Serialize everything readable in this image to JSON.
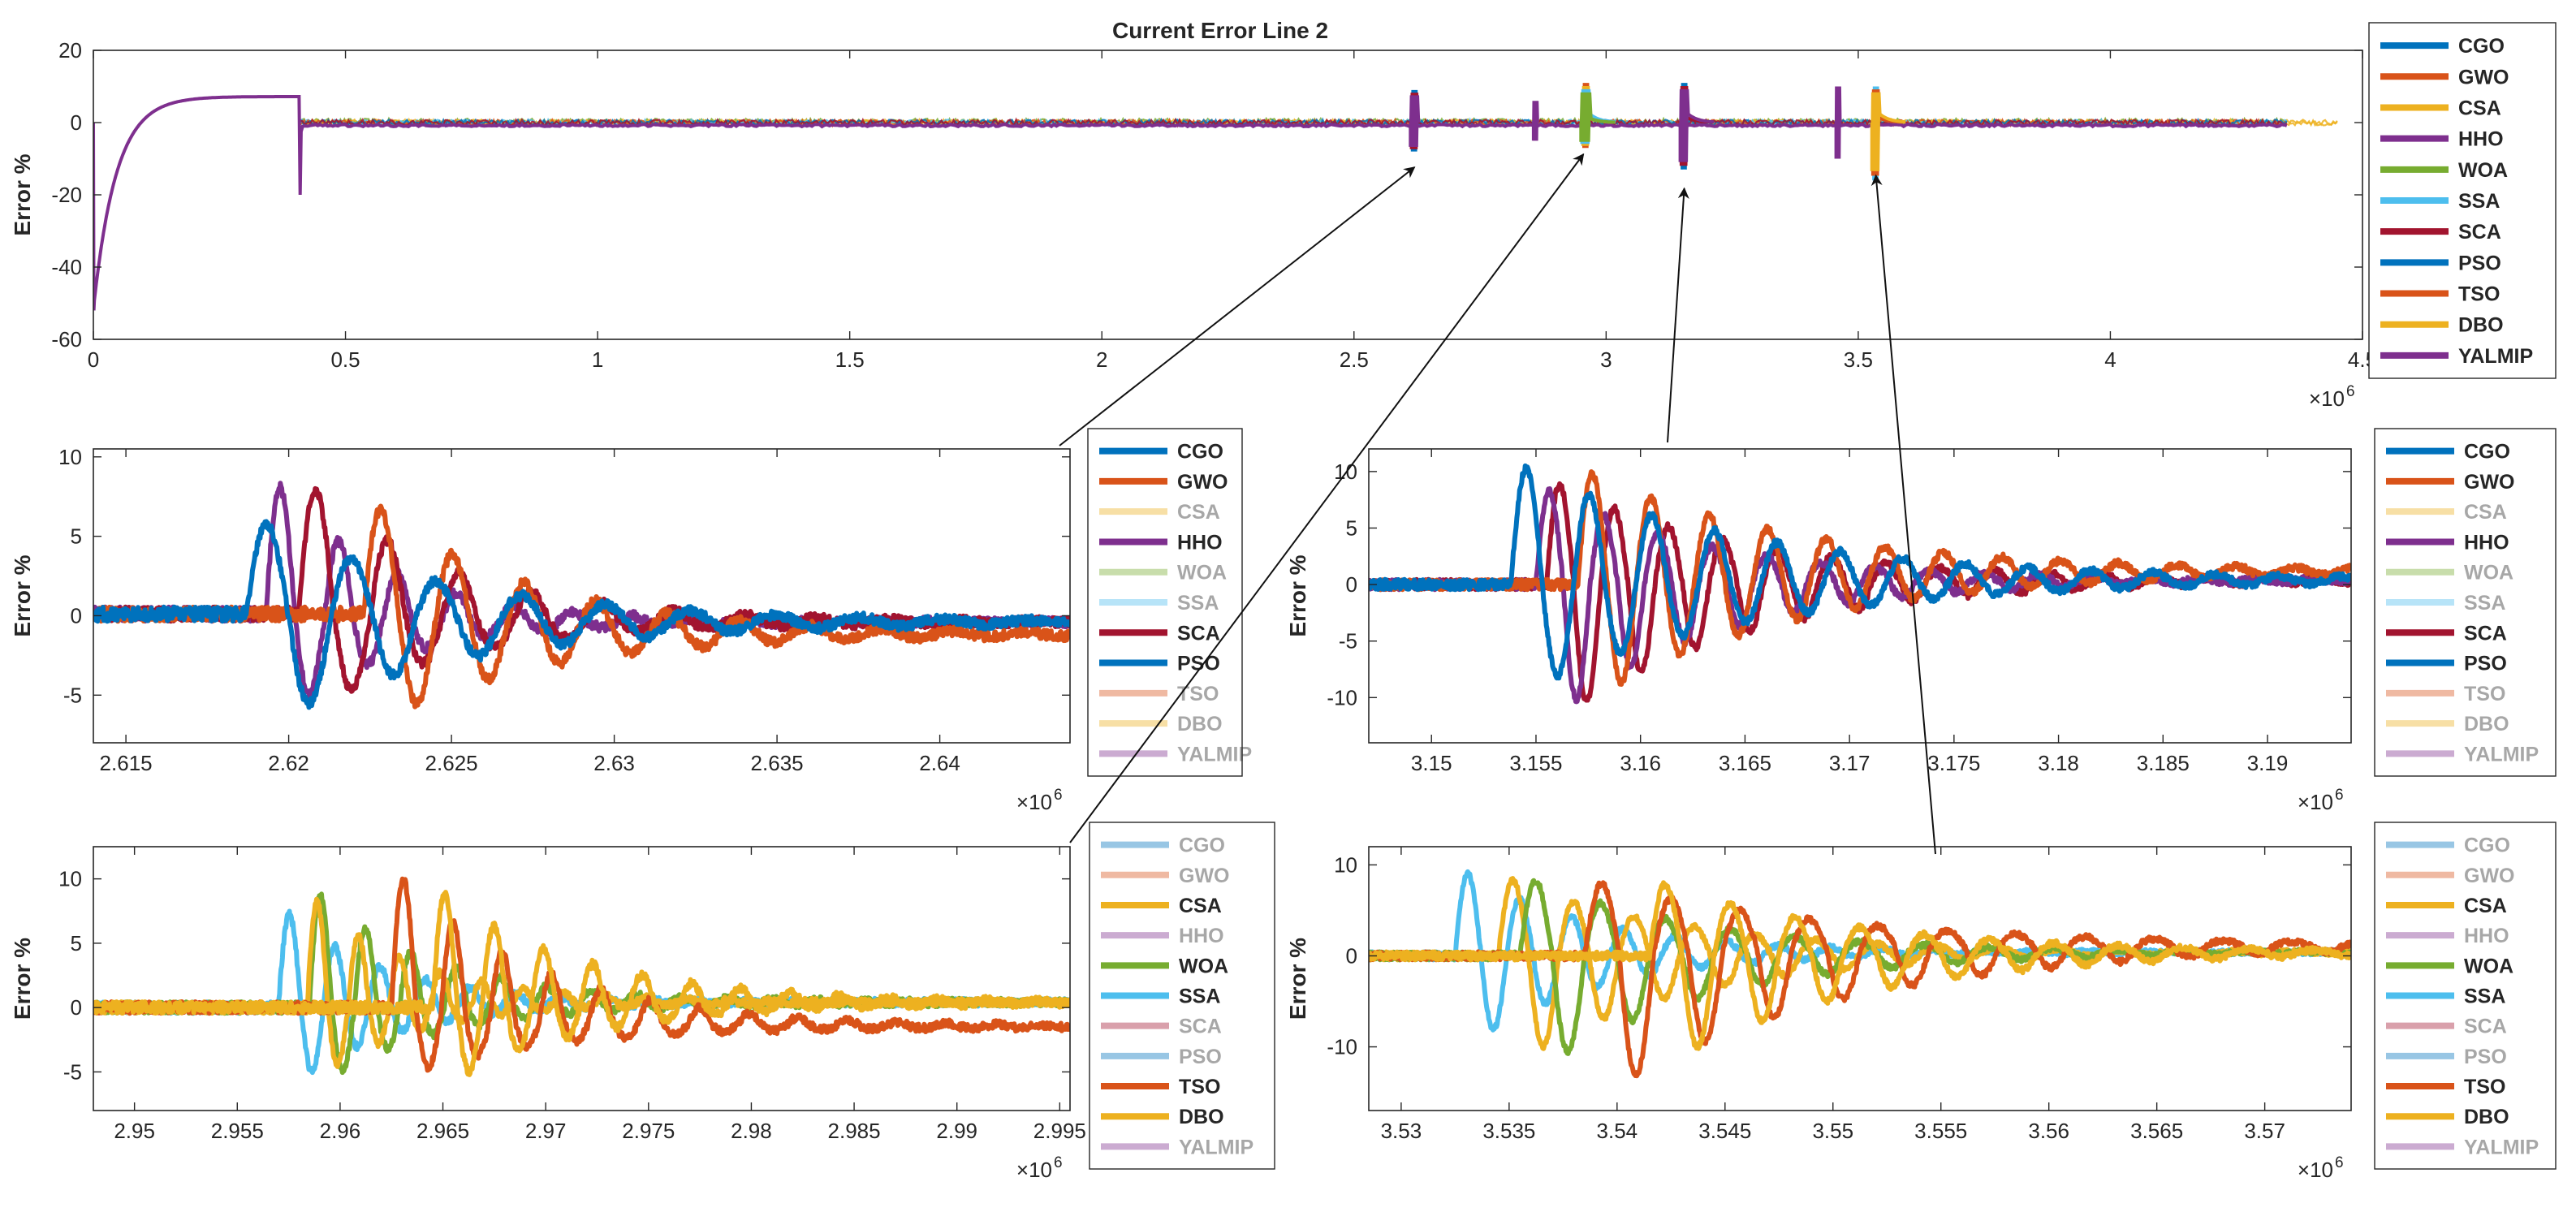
{
  "figure": {
    "title": "Current Error Line 2",
    "multiplier": "×10",
    "multiplier_exp": "6"
  },
  "legend_labels": [
    "CGO",
    "GWO",
    "CSA",
    "HHO",
    "WOA",
    "SSA",
    "SCA",
    "PSO",
    "TSO",
    "DBO",
    "YALMIP"
  ],
  "colors": {
    "CGO": "#0072BD",
    "GWO": "#D95319",
    "CSA": "#EDB120",
    "HHO": "#7E2F8E",
    "WOA": "#77AC30",
    "SSA": "#4DBEEE",
    "SCA": "#A2142F",
    "PSO": "#0072BD",
    "TSO": "#D95319",
    "DBO": "#EDB120",
    "YALMIP": "#7E2F8E"
  },
  "chart_data": [
    {
      "id": "main",
      "type": "line",
      "title": "Current Error Line 2",
      "xlabel": "",
      "ylabel": "Error %",
      "xlim": [
        0,
        4.5
      ],
      "ylim": [
        -60,
        20
      ],
      "x_scale": "x 10^6",
      "xticks": [
        0,
        0.5,
        1,
        1.5,
        2,
        2.5,
        3,
        3.5,
        4,
        4.5
      ],
      "xtick_labels": [
        "0",
        "0.5",
        "1",
        "1.5",
        "2",
        "2.5",
        "3",
        "3.5",
        "4",
        "4.5"
      ],
      "yticks": [
        -60,
        -40,
        -20,
        0,
        20
      ],
      "ytick_labels": [
        "-60",
        "-40",
        "-20",
        "0",
        "20"
      ],
      "legend_visible": [
        "CGO",
        "GWO",
        "CSA",
        "HHO",
        "WOA",
        "SSA",
        "SCA",
        "PSO",
        "TSO",
        "DBO",
        "YALMIP"
      ],
      "events_x": [
        2.62,
        2.86,
        2.96,
        3.155,
        3.46,
        3.535
      ],
      "series": [
        {
          "name": "YALMIP",
          "description": "startup transient",
          "x": [
            0,
            0.01,
            0.03,
            0.06,
            0.1,
            0.15,
            0.2,
            0.3,
            0.41,
            0.41,
            0.42,
            4.35
          ],
          "y": [
            -52,
            -25,
            -8,
            1,
            4.5,
            6,
            6.7,
            7,
            7.2,
            -20,
            -1.5,
            -0.5
          ]
        }
      ]
    },
    {
      "id": "zoom1",
      "type": "line",
      "xlabel": "",
      "ylabel": "Error %",
      "xlim": [
        2.614,
        2.644
      ],
      "ylim": [
        -8,
        10.5
      ],
      "x_scale": "x 10^6",
      "xticks": [
        2.615,
        2.62,
        2.625,
        2.63,
        2.635,
        2.64
      ],
      "xtick_labels": [
        "2.615",
        "2.62",
        "2.625",
        "2.63",
        "2.635",
        "2.64"
      ],
      "yticks": [
        -5,
        0,
        5,
        10
      ],
      "ytick_labels": [
        "-5",
        "0",
        "5",
        "10"
      ],
      "legend_visible": [
        "CGO",
        "GWO",
        "HHO",
        "SCA",
        "PSO"
      ],
      "series": [
        {
          "name": "HHO",
          "t0": 2.6193,
          "amp": 9.2,
          "neg": -7,
          "period": 0.0018,
          "decay": 0.0035
        },
        {
          "name": "SCA",
          "t0": 2.6203,
          "amp": 9.0,
          "neg": -6.5,
          "period": 0.0022,
          "decay": 0.0045
        },
        {
          "name": "GWO",
          "t0": 2.6223,
          "amp": 7.6,
          "neg": -7.2,
          "period": 0.0022,
          "decay": 0.005
        },
        {
          "name": "CGO",
          "t0": 2.6187,
          "amp": 6.5,
          "neg": -7.5,
          "period": 0.0026,
          "decay": 0.006
        }
      ]
    },
    {
      "id": "zoom2",
      "type": "line",
      "xlabel": "",
      "ylabel": "Error %",
      "xlim": [
        3.147,
        3.194
      ],
      "ylim": [
        -14,
        12
      ],
      "x_scale": "x 10^6",
      "xticks": [
        3.15,
        3.155,
        3.16,
        3.165,
        3.17,
        3.175,
        3.18,
        3.185,
        3.19
      ],
      "xtick_labels": [
        "3.15",
        "3.155",
        "3.16",
        "3.165",
        "3.17",
        "3.175",
        "3.18",
        "3.185",
        "3.19"
      ],
      "yticks": [
        -10,
        -5,
        0,
        5,
        10
      ],
      "ytick_labels": [
        "-10",
        "-5",
        "0",
        "5",
        "10"
      ],
      "legend_visible": [
        "CGO",
        "GWO",
        "HHO",
        "SCA",
        "PSO"
      ],
      "series": [
        {
          "name": "SCA",
          "t0": 3.1555,
          "amp": 9.5,
          "neg": -13,
          "period": 0.0026,
          "decay": 0.009
        },
        {
          "name": "HHO",
          "t0": 3.155,
          "amp": 9,
          "neg": -13,
          "period": 0.0026,
          "decay": 0.008
        },
        {
          "name": "GWO",
          "t0": 3.157,
          "amp": 10.5,
          "neg": -11,
          "period": 0.0028,
          "decay": 0.01
        },
        {
          "name": "CGO",
          "t0": 3.1538,
          "amp": 11,
          "neg": -10,
          "period": 0.003,
          "decay": 0.011
        }
      ]
    },
    {
      "id": "zoom3",
      "type": "line",
      "xlabel": "",
      "ylabel": "Error %",
      "xlim": [
        2.948,
        2.9955
      ],
      "ylim": [
        -8,
        12.5
      ],
      "x_scale": "x 10^6",
      "xticks": [
        2.95,
        2.955,
        2.96,
        2.965,
        2.97,
        2.975,
        2.98,
        2.985,
        2.99,
        2.995
      ],
      "xtick_labels": [
        "2.95",
        "2.955",
        "2.96",
        "2.965",
        "2.97",
        "2.975",
        "2.98",
        "2.985",
        "2.99",
        "2.995"
      ],
      "yticks": [
        -5,
        0,
        5,
        10
      ],
      "ytick_labels": [
        "-5",
        "0",
        "5",
        "10"
      ],
      "legend_visible": [
        "CSA",
        "WOA",
        "SSA",
        "TSO",
        "DBO"
      ],
      "series": [
        {
          "name": "SSA",
          "t0": 2.957,
          "amp": 8,
          "neg": -7,
          "period": 0.0022,
          "decay": 0.005
        },
        {
          "name": "WOA",
          "t0": 2.9585,
          "amp": 9.5,
          "neg": -6.5,
          "period": 0.0022,
          "decay": 0.006
        },
        {
          "name": "CSA",
          "t0": 2.9584,
          "amp": 9,
          "neg": -6,
          "period": 0.002,
          "decay": 0.005
        },
        {
          "name": "TSO",
          "t0": 2.9625,
          "amp": 11,
          "neg": -5.5,
          "period": 0.0024,
          "decay": 0.007
        },
        {
          "name": "DBO",
          "t0": 2.9645,
          "amp": 9.5,
          "neg": -6.5,
          "period": 0.0024,
          "decay": 0.007
        }
      ]
    },
    {
      "id": "zoom4",
      "type": "line",
      "xlabel": "",
      "ylabel": "Error %",
      "xlim": [
        3.5285,
        3.574
      ],
      "ylim": [
        -17,
        12
      ],
      "x_scale": "x 10^6",
      "xticks": [
        3.53,
        3.535,
        3.54,
        3.545,
        3.55,
        3.555,
        3.56,
        3.565,
        3.57
      ],
      "xtick_labels": [
        "3.53",
        "3.535",
        "3.54",
        "3.545",
        "3.55",
        "3.555",
        "3.56",
        "3.565",
        "3.57"
      ],
      "yticks": [
        -10,
        0,
        10
      ],
      "ytick_labels": [
        "-10",
        "0",
        "10"
      ],
      "legend_visible": [
        "CSA",
        "WOA",
        "SSA",
        "TSO",
        "DBO"
      ],
      "series": [
        {
          "name": "SSA",
          "t0": 3.5325,
          "amp": 10,
          "neg": -11,
          "period": 0.0024,
          "decay": 0.006
        },
        {
          "name": "CSA",
          "t0": 3.5345,
          "amp": 9,
          "neg": -13,
          "period": 0.0028,
          "decay": 0.008
        },
        {
          "name": "WOA",
          "t0": 3.5355,
          "amp": 9,
          "neg": -14,
          "period": 0.003,
          "decay": 0.008
        },
        {
          "name": "TSO",
          "t0": 3.5385,
          "amp": 8.5,
          "neg": -16.5,
          "period": 0.0032,
          "decay": 0.011
        },
        {
          "name": "DBO",
          "t0": 3.5415,
          "amp": 8.5,
          "neg": -13,
          "period": 0.003,
          "decay": 0.009
        }
      ]
    }
  ]
}
